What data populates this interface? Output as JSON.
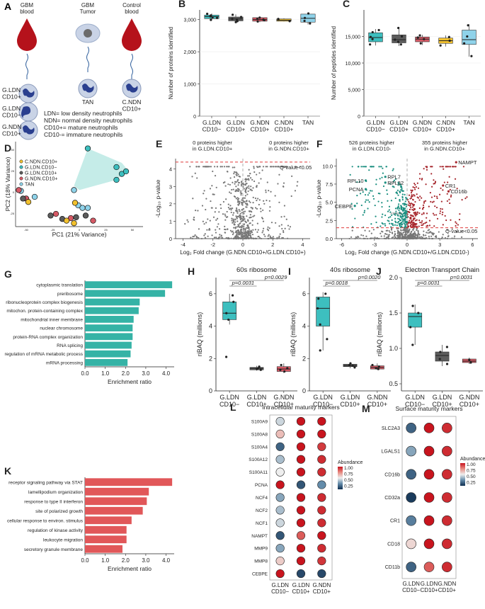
{
  "colors": {
    "teal": "#3dbfbf",
    "gray": "#5c5c5c",
    "red": "#d65a66",
    "yellow": "#f2c12e",
    "lightblue": "#8fd3ea",
    "blood": "#b5121b",
    "bar_teal": "#35b3a6",
    "bar_red": "#e15759",
    "tumor": "#c9d3e6"
  },
  "panelA": {
    "letter": "A",
    "col1": "GBM\nblood",
    "col2": "GBM\nTumor",
    "col3": "Control\nblood",
    "cells": [
      {
        "label": "G.LDN\nCD10+"
      },
      {
        "label": "G.LDN\nCD10−"
      },
      {
        "label": "G.NDN\nCD10+"
      }
    ],
    "tan": "TAN",
    "cndn": "C.NDN\nCD10+",
    "legend": [
      "LDN= low density neutrophils",
      "NDN= normal density neutrophils",
      "CD10+= mature neutrophils",
      "CD10-= immature neutrophils"
    ]
  },
  "boxB": {
    "letter": "B",
    "ylabel": "Number of proteins identified",
    "ylim": [
      0,
      3300
    ],
    "yticks": [
      0,
      1000,
      2000,
      3000
    ],
    "yticklabels": [
      "0",
      "1,000",
      "2,000",
      "3,000"
    ],
    "groups": [
      {
        "label": "G.LDN\nCD10−",
        "color": "#3dbfbf",
        "q1": 3030,
        "med": 3090,
        "q3": 3140,
        "lo": 2980,
        "hi": 3190,
        "pts": [
          3050,
          3100,
          3130,
          3070,
          3180,
          2990
        ]
      },
      {
        "label": "G.LDN\nCD10+",
        "color": "#5c5c5c",
        "q1": 2960,
        "med": 3020,
        "q3": 3080,
        "lo": 2900,
        "hi": 3160,
        "pts": [
          2950,
          3000,
          3080,
          3150,
          3020,
          2920
        ]
      },
      {
        "label": "G.NDN\nCD10+",
        "color": "#d65a66",
        "q1": 2950,
        "med": 3000,
        "q3": 3060,
        "lo": 2920,
        "hi": 3090,
        "pts": [
          2940,
          3000,
          3060,
          2980,
          3020
        ]
      },
      {
        "label": "C.NDN\nCD10+",
        "color": "#f2c12e",
        "q1": 2950,
        "med": 2980,
        "q3": 3020,
        "lo": 2940,
        "hi": 3040,
        "pts": [
          2950,
          3000,
          3020
        ]
      },
      {
        "label": "TAN",
        "color": "#8fd3ea",
        "q1": 2920,
        "med": 3040,
        "q3": 3170,
        "lo": 2850,
        "hi": 3200,
        "pts": [
          2880,
          3050,
          3190,
          2960
        ]
      }
    ]
  },
  "boxC": {
    "letter": "C",
    "ylabel": "Number of peptides identified",
    "ylim": [
      0,
      20000
    ],
    "yticks": [
      0,
      5000,
      10000,
      15000
    ],
    "yticklabels": [
      "0",
      "5,000",
      "10,000",
      "15,000"
    ],
    "groups": [
      {
        "label": "G.LDN\nCD10−",
        "color": "#3dbfbf",
        "q1": 14000,
        "med": 14800,
        "q3": 15700,
        "lo": 13300,
        "hi": 16400,
        "pts": [
          13500,
          14500,
          15800,
          16200,
          14900
        ]
      },
      {
        "label": "G.LDN\nCD10+",
        "color": "#5c5c5c",
        "q1": 13800,
        "med": 14400,
        "q3": 15300,
        "lo": 13200,
        "hi": 16800,
        "pts": [
          13500,
          14000,
          15000,
          16600,
          14400
        ]
      },
      {
        "label": "G.NDN\nCD10+",
        "color": "#d65a66",
        "q1": 14000,
        "med": 14500,
        "q3": 14900,
        "lo": 13400,
        "hi": 15300,
        "pts": [
          13700,
          14500,
          15200,
          14800
        ]
      },
      {
        "label": "C.NDN\nCD10+",
        "color": "#f2c12e",
        "q1": 13700,
        "med": 14200,
        "q3": 14700,
        "lo": 13100,
        "hi": 15200,
        "pts": [
          13300,
          14200,
          14900
        ]
      },
      {
        "label": "TAN",
        "color": "#8fd3ea",
        "q1": 13500,
        "med": 14400,
        "q3": 16200,
        "lo": 11200,
        "hi": 17300,
        "pts": [
          11300,
          13700,
          15000,
          17100
        ]
      }
    ]
  },
  "pca": {
    "letter": "D",
    "xlabel": "PC1 (21% Variance)",
    "ylabel": "PC2 (18% Variance)",
    "xticks": [
      "-50",
      "-25",
      "0",
      "25",
      "50"
    ],
    "yticks": [
      "-25",
      "0",
      "25",
      "50"
    ],
    "legend": [
      {
        "label": "C.NDN.CD10+",
        "color": "#f2c12e"
      },
      {
        "label": "G.LDN.CD10−",
        "color": "#3dbfbf"
      },
      {
        "label": "G.LDN.CD10+",
        "color": "#5c5c5c"
      },
      {
        "label": "G.NDN.CD10+",
        "color": "#d65a66"
      },
      {
        "label": "TAN",
        "color": "#8fd3ea"
      }
    ],
    "points": [
      {
        "x": 8,
        "y": 52,
        "g": 1
      },
      {
        "x": 35,
        "y": 15,
        "g": 1
      },
      {
        "x": 40,
        "y": 22,
        "g": 1
      },
      {
        "x": 44,
        "y": 25,
        "g": 1
      },
      {
        "x": 35,
        "y": 30,
        "g": 1
      },
      {
        "x": -55,
        "y": 2,
        "g": 4
      },
      {
        "x": -42,
        "y": -5,
        "g": 4
      },
      {
        "x": -5,
        "y": 3,
        "g": 4
      },
      {
        "x": -1,
        "y": -15,
        "g": 4
      },
      {
        "x": 3,
        "y": -18,
        "g": 4
      },
      {
        "x": 8,
        "y": -18,
        "g": 4
      },
      {
        "x": -57,
        "y": 3,
        "g": 3
      },
      {
        "x": -50,
        "y": -7,
        "g": 3
      },
      {
        "x": -22,
        "y": -25,
        "g": 3
      },
      {
        "x": -8,
        "y": -30,
        "g": 3
      },
      {
        "x": 13,
        "y": -33,
        "g": 3
      },
      {
        "x": -53,
        "y": -7,
        "g": 2
      },
      {
        "x": -27,
        "y": -27,
        "g": 2
      },
      {
        "x": -16,
        "y": -31,
        "g": 2
      },
      {
        "x": -3,
        "y": -29,
        "g": 2
      },
      {
        "x": 6,
        "y": -27,
        "g": 2
      },
      {
        "x": -48,
        "y": -11,
        "g": 0
      },
      {
        "x": -4,
        "y": -12,
        "g": 0
      },
      {
        "x": -12,
        "y": -33,
        "g": 0
      },
      {
        "x": -5,
        "y": -36,
        "g": 0
      }
    ]
  },
  "volE": {
    "letter": "E",
    "xlabel": "Log₂ Fold change (G.NDN.CD10+/G.LDN.CD10+)",
    "ylabel": "-Log₁₀ p-value",
    "left_note": "0 proteins higher\nin G.LDN.CD10+",
    "right_note": "0 proteins higher\nin G.NDN.CD10+",
    "qlabel": "Q-value<0.05",
    "xticks": [
      "-4",
      "-2",
      "0",
      "2",
      "4"
    ],
    "yticks": [
      "0",
      "1",
      "2",
      "3",
      "4"
    ]
  },
  "volF": {
    "letter": "F",
    "xlabel": "Log₂ Fold change (G.NDN.CD10+/G.LDN.CD10-)",
    "ylabel": "-Log₁₀ p-value",
    "left_note": "526 proteins higher\nin G.LDN.CD10-",
    "right_note": "355 proteins higher\nin G.NDN.CD10+",
    "qlabel": "Q-value<0.05",
    "xticks": [
      "-6",
      "-3",
      "0",
      "3",
      "6"
    ],
    "yticks": [
      "0.0",
      "2.5",
      "5.0",
      "7.5",
      "10.0"
    ],
    "labels": [
      {
        "text": "NAMPT"
      },
      {
        "text": "RPL10"
      },
      {
        "text": "RPL7"
      },
      {
        "text": "RPL32"
      },
      {
        "text": "PCNA"
      },
      {
        "text": "CR1"
      },
      {
        "text": "CD16b"
      },
      {
        "text": "CEBPE"
      },
      {
        "text": "ATP5MF"
      }
    ]
  },
  "barG": {
    "letter": "G",
    "xlabel": "Enrichment ratio",
    "xticks": [
      "0.0",
      "1.0",
      "2.0",
      "3.0",
      "4.0"
    ],
    "xmax": 4.4,
    "items": [
      {
        "label": "cytoplasmic translation",
        "value": 4.3
      },
      {
        "label": "preribosome",
        "value": 3.95
      },
      {
        "label": "ribonucleoprotein complex biogenesis",
        "value": 2.7
      },
      {
        "label": "mitochon. protein-containing complex",
        "value": 2.65
      },
      {
        "label": "mitochondrial inner membrane",
        "value": 2.4
      },
      {
        "label": "nuclear chromosome",
        "value": 2.35
      },
      {
        "label": "protein-RNA complex organization",
        "value": 2.35
      },
      {
        "label": "RNA splicing",
        "value": 2.3
      },
      {
        "label": "regulation of mRNA metabolic process",
        "value": 2.25
      },
      {
        "label": "mRNA processing",
        "value": 2.1
      }
    ]
  },
  "barK": {
    "letter": "K",
    "xlabel": "Enrichment ratio",
    "xticks": [
      "0.0",
      "1.0",
      "2.0",
      "3.0",
      "4.0"
    ],
    "xmax": 4.4,
    "items": [
      {
        "label": "receptor signaling pathway via STAT",
        "value": 4.3
      },
      {
        "label": "lamellipodium organization",
        "value": 3.15
      },
      {
        "label": "response to type II interferon",
        "value": 3.05
      },
      {
        "label": "site of polarized growth",
        "value": 2.85
      },
      {
        "label": "cellular response to environ. stimulus",
        "value": 2.3
      },
      {
        "label": "regulation of kinase activity",
        "value": 2.05
      },
      {
        "label": "leukocyte migration",
        "value": 2.05
      },
      {
        "label": "secretory granule membrane",
        "value": 1.85
      }
    ]
  },
  "riH": {
    "letter": "H",
    "title": "60s ribosome",
    "ylabel": "riBAQ (millions)",
    "ylim": [
      0,
      7
    ],
    "yticks": [
      "0",
      "2",
      "4",
      "6"
    ],
    "p1": "p=0.0031",
    "p2": "p=0.0029",
    "groups": [
      {
        "label": "G.LDN\nCD10−",
        "color": "#3dbfbf",
        "q1": 4.4,
        "med": 4.8,
        "q3": 5.5,
        "lo": 4.1,
        "hi": 6.0,
        "pts": [
          2.1,
          4.4,
          4.8,
          5.5,
          5.9
        ]
      },
      {
        "label": "G.LDN\nCD10+",
        "color": "#5c5c5c",
        "q1": 1.3,
        "med": 1.4,
        "q3": 1.45,
        "lo": 1.25,
        "hi": 1.55,
        "pts": [
          1.3,
          1.4,
          1.5,
          1.35
        ]
      },
      {
        "label": "G.NDN\nCD10+",
        "color": "#d65a66",
        "q1": 1.2,
        "med": 1.35,
        "q3": 1.5,
        "lo": 1.1,
        "hi": 1.7,
        "pts": [
          1.2,
          1.4,
          1.6,
          1.3
        ]
      }
    ]
  },
  "riI": {
    "letter": "I",
    "title": "40s ribosome",
    "ylabel": "riBAQ (millions)",
    "ylim": [
      0,
      7
    ],
    "yticks": [
      "0",
      "2",
      "4",
      "6"
    ],
    "p1": "p=0.0018",
    "p2": "p=0.0020",
    "groups": [
      {
        "label": "G.LDN\nCD10−",
        "color": "#3dbfbf",
        "q1": 4.0,
        "med": 5.1,
        "q3": 5.8,
        "lo": 2.5,
        "hi": 6.1,
        "pts": [
          2.5,
          4.1,
          5.1,
          5.7,
          6.0,
          3.2
        ]
      },
      {
        "label": "G.LDN\nCD10+",
        "color": "#5c5c5c",
        "q1": 1.5,
        "med": 1.55,
        "q3": 1.65,
        "lo": 1.4,
        "hi": 1.75,
        "pts": [
          1.45,
          1.6,
          1.7,
          1.55
        ]
      },
      {
        "label": "G.NDN\nCD10+",
        "color": "#d65a66",
        "q1": 1.35,
        "med": 1.45,
        "q3": 1.55,
        "lo": 1.3,
        "hi": 1.7,
        "pts": [
          1.35,
          1.5,
          1.6,
          1.4
        ]
      }
    ]
  },
  "riJ": {
    "letter": "J",
    "title": "Electron Transport Chain",
    "ylabel": "riBAQ (millions)",
    "ylim": [
      0.4,
      2.0
    ],
    "yticks": [
      "0.5",
      "1.0",
      "1.5",
      "2.0"
    ],
    "p1": "p=0.0031",
    "p2": "p=0.0031",
    "groups": [
      {
        "label": "G.LDN\nCD10−",
        "color": "#3dbfbf",
        "q1": 1.3,
        "med": 1.45,
        "q3": 1.5,
        "lo": 1.05,
        "hi": 1.62,
        "pts": [
          1.05,
          1.3,
          1.5,
          1.6
        ]
      },
      {
        "label": "G.LDN\nCD10+",
        "color": "#5c5c5c",
        "q1": 0.82,
        "med": 0.9,
        "q3": 0.95,
        "lo": 0.75,
        "hi": 1.05,
        "pts": [
          0.78,
          0.85,
          0.95,
          1.02
        ]
      },
      {
        "label": "G.NDN\nCD10+",
        "color": "#d65a66",
        "q1": 0.8,
        "med": 0.82,
        "q3": 0.85,
        "lo": 0.78,
        "hi": 0.87,
        "pts": [
          0.8,
          0.84
        ]
      }
    ]
  },
  "dotL": {
    "letter": "L",
    "title": "Intracellular maturity markers",
    "cols": [
      "G.LDN\nCD10−",
      "G.LDN\nCD10+",
      "G.NDN\nCD10+"
    ],
    "legend_title": "Abundance",
    "legend_ticks": [
      "1.00",
      "0.75",
      "0.50",
      "0.25"
    ],
    "rows": [
      {
        "name": "S100A9",
        "v": [
          0.5,
          1.0,
          1.0
        ]
      },
      {
        "name": "S100A8",
        "v": [
          0.65,
          1.0,
          1.0
        ]
      },
      {
        "name": "S100A4",
        "v": [
          0.2,
          1.0,
          0.92
        ]
      },
      {
        "name": "S100A12",
        "v": [
          0.45,
          1.0,
          0.95
        ]
      },
      {
        "name": "S100A11",
        "v": [
          0.55,
          1.0,
          0.95
        ]
      },
      {
        "name": "PCNA",
        "v": [
          1.0,
          0.15,
          0.35
        ]
      },
      {
        "name": "NCF4",
        "v": [
          0.4,
          1.0,
          0.95
        ]
      },
      {
        "name": "NCF2",
        "v": [
          0.45,
          1.0,
          0.95
        ]
      },
      {
        "name": "NCF1",
        "v": [
          0.5,
          1.0,
          0.95
        ]
      },
      {
        "name": "NAMPT",
        "v": [
          0.15,
          0.85,
          1.0
        ]
      },
      {
        "name": "MMP9",
        "v": [
          0.4,
          1.0,
          0.95
        ]
      },
      {
        "name": "MMP8",
        "v": [
          0.62,
          1.0,
          0.93
        ]
      },
      {
        "name": "CEBPE",
        "v": [
          1.0,
          0.1,
          0.1
        ]
      }
    ]
  },
  "dotM": {
    "letter": "M",
    "title": "Surface maturity markers",
    "cols": [
      "G.LDN\nCD10−",
      "G.LDN\nCD10+",
      "G.NDN\nCD10+"
    ],
    "legend_title": "Abundance",
    "legend_ticks": [
      "1.00",
      "0.75",
      "0.50",
      "0.25"
    ],
    "rows": [
      {
        "name": "SLC2A3",
        "v": [
          0.2,
          1.0,
          0.95
        ]
      },
      {
        "name": "LGALS1",
        "v": [
          0.4,
          1.0,
          0.95
        ]
      },
      {
        "name": "CD16b",
        "v": [
          0.2,
          1.0,
          0.95
        ]
      },
      {
        "name": "CD32a",
        "v": [
          0.05,
          1.0,
          0.95
        ]
      },
      {
        "name": "CR1",
        "v": [
          0.3,
          1.0,
          0.95
        ]
      },
      {
        "name": "CD18",
        "v": [
          0.6,
          1.0,
          0.95
        ]
      },
      {
        "name": "CD11b",
        "v": [
          0.2,
          0.85,
          0.95
        ]
      }
    ]
  }
}
